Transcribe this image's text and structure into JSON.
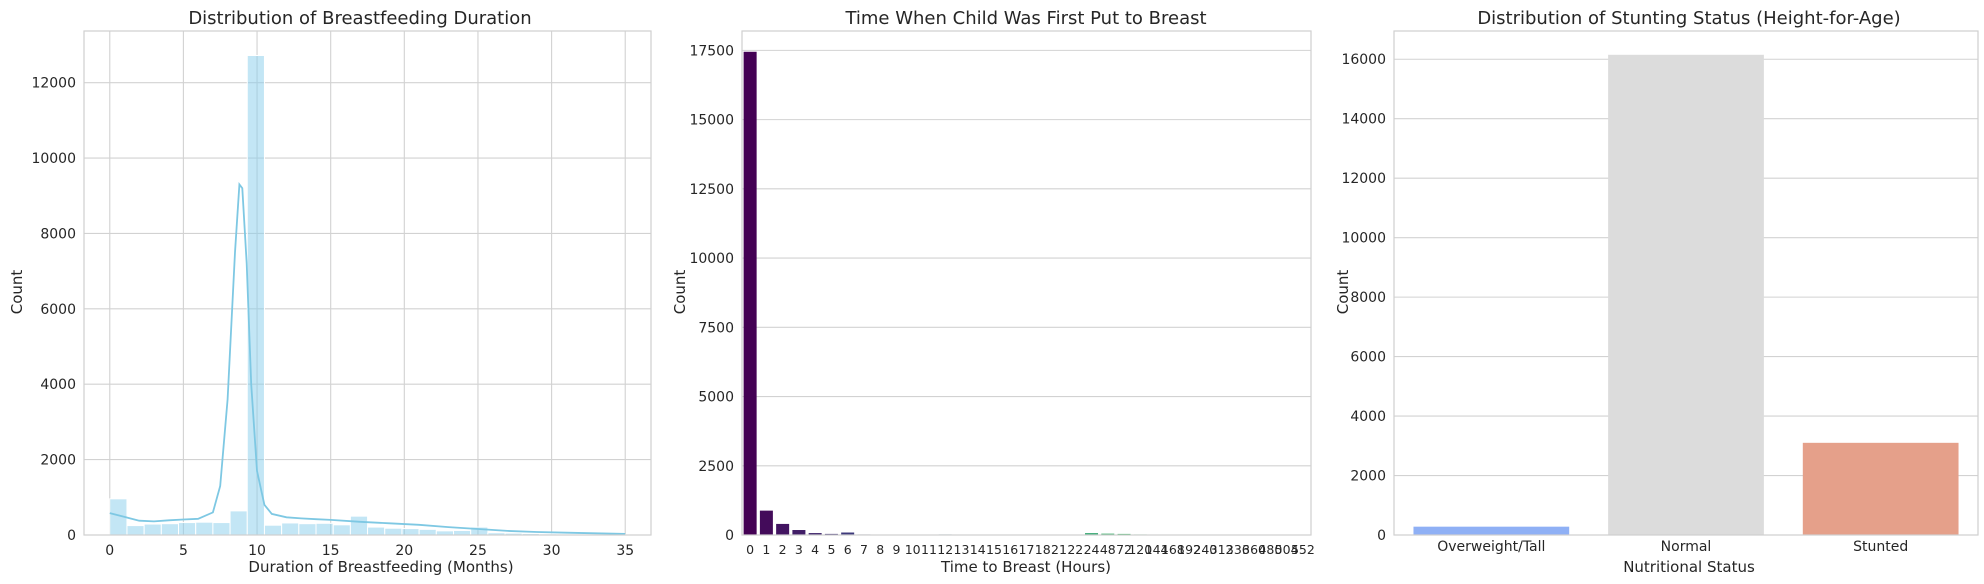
{
  "colors": {
    "grid": "#d2d2d2",
    "axes_edge": "#cfcfcf",
    "hist_fill": "#87ceeb",
    "hist_line": "#7ec8e3",
    "first_bar": "#440154"
  },
  "chart_data": [
    {
      "type": "bar",
      "title": "Distribution of Breastfeeding Duration",
      "xlabel": "Duration of Breastfeeding (Months)",
      "ylabel": "Count",
      "xlim": [
        -1.75,
        36.75
      ],
      "ylim": [
        0,
        13370
      ],
      "xticks": [
        0,
        5,
        10,
        15,
        20,
        25,
        30,
        35
      ],
      "yticks": [
        0,
        2000,
        4000,
        6000,
        8000,
        10000,
        12000
      ],
      "grid": true,
      "bin_width": 1.167,
      "bin_start": 0,
      "hist_values": [
        960,
        250,
        290,
        300,
        330,
        340,
        330,
        640,
        12720,
        260,
        320,
        300,
        310,
        270,
        500,
        210,
        180,
        170,
        150,
        110,
        120,
        210,
        60,
        50,
        40,
        30,
        20,
        15,
        15,
        10
      ],
      "kde": {
        "x": [
          0,
          1,
          2,
          3,
          4,
          5,
          6,
          7,
          7.5,
          8,
          8.5,
          8.8,
          9,
          9.3,
          9.6,
          10,
          10.5,
          11,
          12,
          13,
          14,
          15,
          17,
          19,
          21,
          23,
          25,
          27,
          29,
          31,
          33,
          35
        ],
        "y": [
          580,
          480,
          380,
          360,
          390,
          410,
          430,
          600,
          1300,
          3600,
          7500,
          9300,
          9200,
          7200,
          4000,
          1700,
          800,
          560,
          470,
          440,
          420,
          400,
          350,
          310,
          270,
          210,
          160,
          110,
          80,
          60,
          45,
          30
        ]
      }
    },
    {
      "type": "bar",
      "title": "Time When Child Was First Put to Breast",
      "xlabel": "Time to Breast (Hours)",
      "ylabel": "Count",
      "ylim": [
        0,
        18200
      ],
      "yticks": [
        0,
        2500,
        5000,
        7500,
        10000,
        12500,
        15000,
        17500
      ],
      "grid": true,
      "categories": [
        "0",
        "1",
        "2",
        "3",
        "4",
        "5",
        "6",
        "7",
        "8",
        "9",
        "10",
        "11",
        "12",
        "13",
        "14",
        "15",
        "16",
        "17",
        "18",
        "21",
        "22",
        "24",
        "48",
        "72",
        "120",
        "144",
        "168",
        "192",
        "240",
        "312",
        "336",
        "360",
        "480",
        "504",
        "552"
      ],
      "values": [
        17450,
        880,
        400,
        180,
        70,
        40,
        90,
        20,
        15,
        10,
        15,
        8,
        20,
        8,
        8,
        8,
        8,
        8,
        15,
        8,
        8,
        70,
        50,
        40,
        20,
        8,
        8,
        8,
        8,
        8,
        8,
        8,
        8,
        8,
        8
      ],
      "palette": "viridis"
    },
    {
      "type": "bar",
      "title": "Distribution of Stunting Status (Height-for-Age)",
      "xlabel": "Nutritional Status",
      "ylabel": "Count",
      "ylim": [
        0,
        16950
      ],
      "yticks": [
        0,
        2000,
        4000,
        6000,
        8000,
        10000,
        12000,
        14000,
        16000
      ],
      "grid": true,
      "categories": [
        "Overweight/Tall",
        "Normal",
        "Stunted"
      ],
      "values": [
        280,
        16150,
        3100
      ],
      "colors": [
        "#8fb0f5",
        "#dcdcdc",
        "#e5a08a"
      ]
    }
  ]
}
